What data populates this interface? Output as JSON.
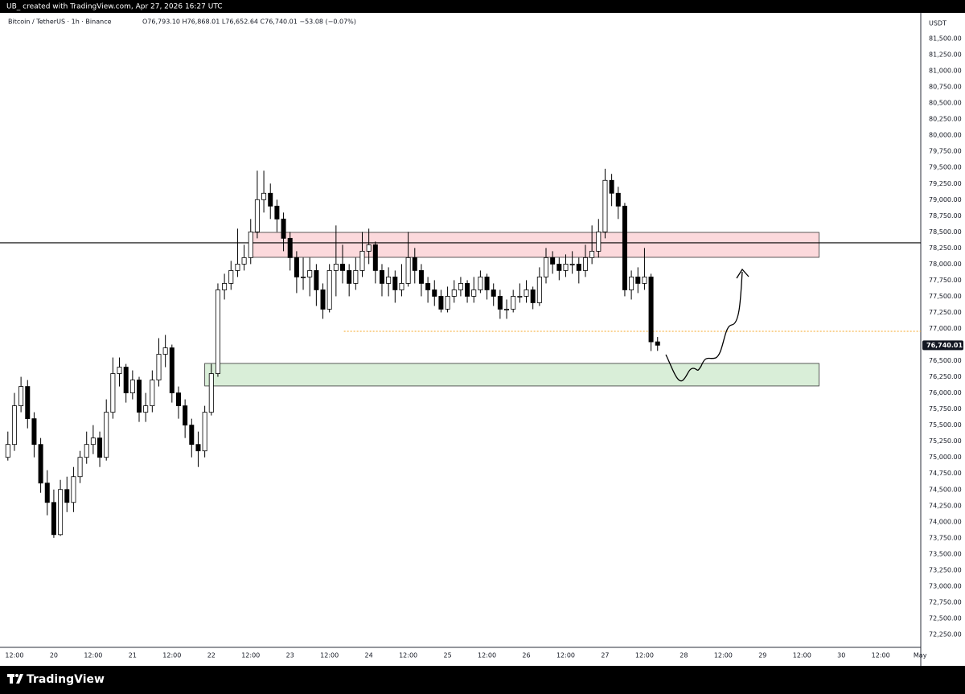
{
  "header": {
    "credit": "UB_ created with TradingView.com, Apr 27, 2026 16:27 UTC"
  },
  "footer": {
    "brand": "TradingView"
  },
  "chart_data": {
    "type": "candlestick",
    "symbol": "Bitcoin / TetherUS · 1h · Binance",
    "ohlc_text": "O76,793.10 H76,868.01 L76,652.64 C76,740.01 −53.08 (−0.07%)",
    "currency": "USDT",
    "up_color": "#ffffff",
    "down_color": "#000000",
    "border_color": "#000000",
    "open": [
      75000,
      75200,
      75800,
      76100,
      75600,
      75200,
      74600,
      74300,
      73800,
      74500,
      74300,
      74700,
      75000,
      75200,
      75300,
      75000,
      75700,
      76300,
      76400,
      76000,
      76200,
      75700,
      75800,
      76200,
      76600,
      76700,
      76000,
      75800,
      75500,
      75200,
      75100,
      75700,
      76300,
      77600,
      77700,
      77900,
      78000,
      78100,
      78500,
      79000,
      79100,
      78900,
      78700,
      78400,
      78100,
      77800,
      77800,
      77900,
      77600,
      77300,
      77900,
      78000,
      77900,
      77700,
      77900,
      78200,
      78300,
      77900,
      77700,
      77800,
      77600,
      77700,
      78100,
      77900,
      77700,
      77600,
      77500,
      77300,
      77500,
      77600,
      77700,
      77500,
      77600,
      77800,
      77600,
      77500,
      77300,
      77300,
      77500,
      77500,
      77600,
      77400,
      77800,
      78100,
      78000,
      77900,
      78000,
      78000,
      77900,
      78100,
      78200,
      78500,
      79300,
      79100,
      78900,
      77600,
      77800,
      77700,
      77800,
      76793.1
    ],
    "high": [
      75400,
      76000,
      76250,
      76200,
      75700,
      75300,
      74800,
      74500,
      74650,
      74700,
      74850,
      75100,
      75400,
      75500,
      75400,
      75900,
      76550,
      76550,
      76450,
      76350,
      76250,
      76000,
      76350,
      76850,
      76900,
      76750,
      76100,
      75900,
      75600,
      75400,
      75800,
      76450,
      77700,
      77850,
      78050,
      78550,
      78300,
      78700,
      79450,
      79450,
      79250,
      79000,
      78800,
      78500,
      78200,
      78100,
      78100,
      78000,
      77700,
      78000,
      78600,
      78300,
      78000,
      78100,
      78500,
      78550,
      78350,
      78000,
      77950,
      77900,
      78000,
      78500,
      78250,
      78000,
      77800,
      77750,
      77600,
      77650,
      77750,
      77800,
      77750,
      77800,
      77900,
      77850,
      77700,
      77600,
      77450,
      77600,
      77700,
      77750,
      77650,
      77950,
      78250,
      78200,
      78100,
      78150,
      78200,
      78100,
      78300,
      78600,
      78700,
      79480,
      79400,
      79200,
      78950,
      77900,
      77950,
      78250,
      77850,
      76868.01
    ],
    "low": [
      74950,
      75100,
      75700,
      75450,
      75000,
      74450,
      74100,
      73750,
      73780,
      74150,
      74150,
      74600,
      74900,
      75050,
      74850,
      74950,
      75600,
      76100,
      75850,
      75900,
      75550,
      75550,
      75700,
      76100,
      76400,
      75850,
      75600,
      75300,
      75000,
      74850,
      75000,
      75650,
      76250,
      77450,
      77600,
      77800,
      77900,
      78000,
      78400,
      78800,
      78700,
      78500,
      78200,
      77900,
      77550,
      77600,
      77500,
      77350,
      77150,
      77250,
      77500,
      77700,
      77500,
      77600,
      77800,
      78000,
      77700,
      77500,
      77500,
      77400,
      77500,
      77650,
      77700,
      77500,
      77400,
      77350,
      77250,
      77250,
      77400,
      77500,
      77400,
      77400,
      77550,
      77450,
      77350,
      77150,
      77150,
      77250,
      77400,
      77400,
      77300,
      77350,
      77700,
      77850,
      77750,
      77800,
      77850,
      77700,
      77800,
      78000,
      78100,
      78400,
      78900,
      78700,
      77500,
      77450,
      77550,
      77600,
      76650,
      76652.64
    ],
    "close": [
      75200,
      75800,
      76100,
      75600,
      75200,
      74600,
      74300,
      73800,
      74500,
      74300,
      74700,
      75000,
      75200,
      75300,
      75000,
      75700,
      76300,
      76400,
      76000,
      76200,
      75700,
      75800,
      76200,
      76600,
      76700,
      76000,
      75800,
      75500,
      75200,
      75100,
      75700,
      76300,
      77600,
      77700,
      77900,
      78000,
      78100,
      78500,
      79000,
      79100,
      78900,
      78700,
      78400,
      78100,
      77800,
      77800,
      77900,
      77600,
      77300,
      77900,
      78000,
      77900,
      77700,
      77900,
      78200,
      78300,
      77900,
      77700,
      77800,
      77600,
      77700,
      78100,
      77900,
      77700,
      77600,
      77500,
      77300,
      77500,
      77600,
      77700,
      77500,
      77600,
      77800,
      77600,
      77500,
      77300,
      77300,
      77500,
      77500,
      77600,
      77400,
      77800,
      78100,
      78000,
      77900,
      78000,
      78000,
      77900,
      78100,
      78200,
      78500,
      79300,
      79100,
      78900,
      77600,
      77800,
      77700,
      77800,
      76793.1,
      76740.01
    ],
    "last_price": {
      "value": 76740.01,
      "label": "76,740.01"
    },
    "xlim": [
      -1.2,
      139.1
    ],
    "xticks": [
      {
        "value": 1,
        "label": "12:00"
      },
      {
        "value": 7,
        "label": "20"
      },
      {
        "value": 13,
        "label": "12:00"
      },
      {
        "value": 19,
        "label": "21"
      },
      {
        "value": 25,
        "label": "12:00"
      },
      {
        "value": 31,
        "label": "22"
      },
      {
        "value": 37,
        "label": "12:00"
      },
      {
        "value": 43,
        "label": "23"
      },
      {
        "value": 49,
        "label": "12:00"
      },
      {
        "value": 55,
        "label": "24"
      },
      {
        "value": 61,
        "label": "12:00"
      },
      {
        "value": 67,
        "label": "25"
      },
      {
        "value": 73,
        "label": "12:00"
      },
      {
        "value": 79,
        "label": "26"
      },
      {
        "value": 85,
        "label": "12:00"
      },
      {
        "value": 91,
        "label": "27"
      },
      {
        "value": 97,
        "label": "12:00"
      },
      {
        "value": 103,
        "label": "28"
      },
      {
        "value": 109,
        "label": "12:00"
      },
      {
        "value": 115,
        "label": "29"
      },
      {
        "value": 121,
        "label": "12:00"
      },
      {
        "value": 127,
        "label": "30"
      },
      {
        "value": 133,
        "label": "12:00"
      },
      {
        "value": 139,
        "label": "May"
      }
    ],
    "ylim": [
      72050,
      81900
    ],
    "yticks": [
      {
        "value": 81500,
        "label": "81,500.00"
      },
      {
        "value": 81250,
        "label": "81,250.00"
      },
      {
        "value": 81000,
        "label": "81,000.00"
      },
      {
        "value": 80750,
        "label": "80,750.00"
      },
      {
        "value": 80500,
        "label": "80,500.00"
      },
      {
        "value": 80250,
        "label": "80,250.00"
      },
      {
        "value": 80000,
        "label": "80,000.00"
      },
      {
        "value": 79750,
        "label": "79,750.00"
      },
      {
        "value": 79500,
        "label": "79,500.00"
      },
      {
        "value": 79250,
        "label": "79,250.00"
      },
      {
        "value": 79000,
        "label": "79,000.00"
      },
      {
        "value": 78750,
        "label": "78,750.00"
      },
      {
        "value": 78500,
        "label": "78,500.00"
      },
      {
        "value": 78250,
        "label": "78,250.00"
      },
      {
        "value": 78000,
        "label": "78,000.00"
      },
      {
        "value": 77750,
        "label": "77,750.00"
      },
      {
        "value": 77500,
        "label": "77,500.00"
      },
      {
        "value": 77250,
        "label": "77,250.00"
      },
      {
        "value": 77000,
        "label": "77,000.00"
      },
      {
        "value": 76750,
        "label": "76,750.00"
      },
      {
        "value": 76500,
        "label": "76,500.00"
      },
      {
        "value": 76250,
        "label": "76,250.00"
      },
      {
        "value": 76000,
        "label": "76,000.00"
      },
      {
        "value": 75750,
        "label": "75,750.00"
      },
      {
        "value": 75500,
        "label": "75,500.00"
      },
      {
        "value": 75250,
        "label": "75,250.00"
      },
      {
        "value": 75000,
        "label": "75,000.00"
      },
      {
        "value": 74750,
        "label": "74,750.00"
      },
      {
        "value": 74500,
        "label": "74,500.00"
      },
      {
        "value": 74250,
        "label": "74,250.00"
      },
      {
        "value": 74000,
        "label": "74,000.00"
      },
      {
        "value": 73750,
        "label": "73,750.00"
      },
      {
        "value": 73500,
        "label": "73,500.00"
      },
      {
        "value": 73250,
        "label": "73,250.00"
      },
      {
        "value": 73000,
        "label": "73,000.00"
      },
      {
        "value": 72750,
        "label": "72,750.00"
      },
      {
        "value": 72500,
        "label": "72,500.00"
      },
      {
        "value": 72250,
        "label": "72,250.00"
      }
    ],
    "grid": false,
    "zones": [
      {
        "low": 78105,
        "high": 78492,
        "start": 36.8,
        "end": 123.6,
        "color": "#fcd9dc"
      },
      {
        "low": 76108,
        "high": 76458,
        "start": 30,
        "end": 123.6,
        "color": "#d9eed8"
      }
    ],
    "hline": {
      "value": 78330,
      "color": "#000000"
    },
    "dotted_line": {
      "value": 76957,
      "start": 51.2,
      "color": "#f5a623"
    }
  }
}
